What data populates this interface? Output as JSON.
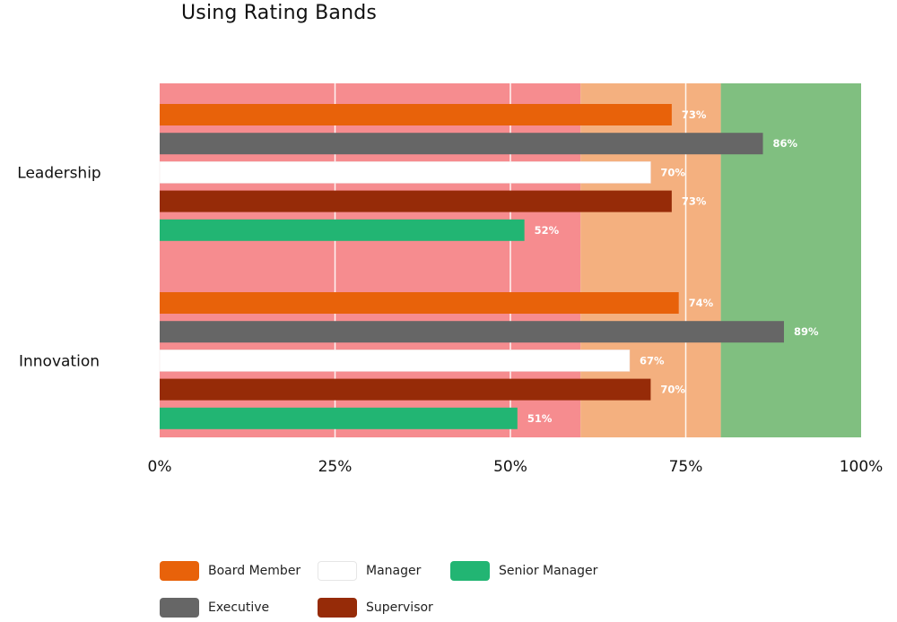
{
  "title": "Using Rating Bands",
  "chart_data": {
    "type": "bar",
    "orientation": "horizontal",
    "categories": [
      "Leadership",
      "Innovation"
    ],
    "series": [
      {
        "name": "Board Member",
        "color": "#E8620A",
        "values": [
          73,
          74
        ]
      },
      {
        "name": "Executive",
        "color": "#666666",
        "values": [
          86,
          89
        ]
      },
      {
        "name": "Manager",
        "color": "#FFFFFF",
        "values": [
          70,
          67
        ]
      },
      {
        "name": "Supervisor",
        "color": "#962B08",
        "values": [
          73,
          70
        ]
      },
      {
        "name": "Senior Manager",
        "color": "#22B573",
        "values": [
          52,
          51
        ]
      }
    ],
    "data_labels": [
      [
        "73%",
        "86%",
        "70%",
        "73%",
        "52%"
      ],
      [
        "74%",
        "89%",
        "67%",
        "70%",
        "51%"
      ]
    ],
    "xlim": [
      0,
      100
    ],
    "xticks": [
      "0%",
      "25%",
      "50%",
      "75%",
      "100%"
    ],
    "bands": [
      {
        "from": 0,
        "to": 60,
        "color": "#F68C8F"
      },
      {
        "from": 60,
        "to": 80,
        "color": "#F4B07F"
      },
      {
        "from": 80,
        "to": 100,
        "color": "#80BF80"
      }
    ],
    "grid": true,
    "legend_position": "bottom"
  },
  "legend": {
    "items": [
      {
        "label": "Board Member",
        "color": "#E8620A"
      },
      {
        "label": "Manager",
        "color": "#FFFFFF"
      },
      {
        "label": "Senior Manager",
        "color": "#22B573"
      },
      {
        "label": "Executive",
        "color": "#666666"
      },
      {
        "label": "Supervisor",
        "color": "#962B08"
      }
    ]
  }
}
